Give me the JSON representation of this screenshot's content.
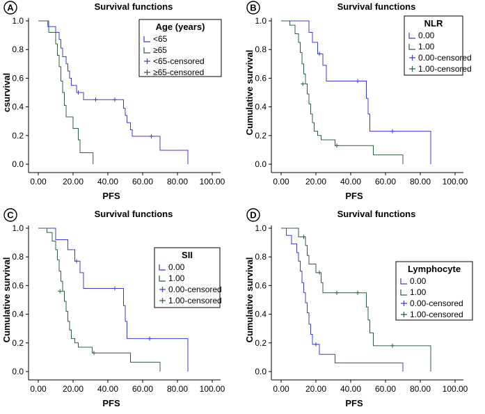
{
  "colors": {
    "blue": "#3a3ad6",
    "green": "#2d5e3c"
  },
  "chart_data": [
    {
      "type": "line",
      "panel_label": "A",
      "title": "Survival functions",
      "xlabel": "PFS",
      "ylabel": "csurvival",
      "xlim": [
        0,
        100
      ],
      "ylim": [
        0,
        1.0
      ],
      "xticks": [
        "0.00",
        "20.00",
        "40.00",
        "60.00",
        "80.00",
        "100.00"
      ],
      "yticks": [
        "0.0",
        "0.2",
        "0.4",
        "0.6",
        "0.8",
        "1.0"
      ],
      "legend_title": "Age (years)",
      "legend_entries": [
        "<65",
        "≥65",
        "<65-censored",
        "≥65-censored"
      ],
      "series": [
        {
          "name": "<65",
          "color": "blue",
          "steps": [
            [
              0,
              1.0
            ],
            [
              5.5,
              0.96
            ],
            [
              10,
              0.92
            ],
            [
              12,
              0.87
            ],
            [
              13,
              0.81
            ],
            [
              14,
              0.75
            ],
            [
              16,
              0.7
            ],
            [
              17,
              0.65
            ],
            [
              18,
              0.6
            ],
            [
              19,
              0.55
            ],
            [
              22,
              0.5
            ],
            [
              26,
              0.45
            ],
            [
              49,
              0.39
            ],
            [
              50,
              0.34
            ],
            [
              51,
              0.29
            ],
            [
              53,
              0.24
            ],
            [
              54,
              0.195
            ],
            [
              70,
              0.097
            ],
            [
              86,
              0.0
            ]
          ],
          "end_x": 86,
          "censored": [
            [
              23,
              0.5
            ],
            [
              33,
              0.45
            ],
            [
              44,
              0.45
            ],
            [
              65,
              0.195
            ]
          ]
        },
        {
          "name": "≥65",
          "color": "green",
          "steps": [
            [
              0,
              1.0
            ],
            [
              6,
              0.92
            ],
            [
              10,
              0.84
            ],
            [
              11,
              0.76
            ],
            [
              12,
              0.68
            ],
            [
              13,
              0.58
            ],
            [
              14,
              0.5
            ],
            [
              15,
              0.41
            ],
            [
              16,
              0.33
            ],
            [
              20,
              0.25
            ],
            [
              23,
              0.17
            ],
            [
              24,
              0.08
            ],
            [
              31.5,
              0.0
            ]
          ],
          "end_x": 31.5,
          "censored": []
        }
      ]
    },
    {
      "type": "line",
      "panel_label": "B",
      "title": "Survival functions",
      "xlabel": "PFS",
      "ylabel": "Cumulative survival",
      "xlim": [
        0,
        100
      ],
      "ylim": [
        0,
        1.0
      ],
      "xticks": [
        "0.00",
        "20.00",
        "40.00",
        "60.00",
        "80.00",
        "100.00"
      ],
      "yticks": [
        "0.0",
        "0.2",
        "0.4",
        "0.6",
        "0.8",
        "1.0"
      ],
      "legend_title": "NLR",
      "legend_entries": [
        "0.00",
        "1.00",
        "0.00-censored",
        "1.00-censored"
      ],
      "series": [
        {
          "name": "0.00",
          "color": "blue",
          "steps": [
            [
              0,
              1.0
            ],
            [
              16,
              0.92
            ],
            [
              18,
              0.85
            ],
            [
              21,
              0.77
            ],
            [
              24,
              0.69
            ],
            [
              26,
              0.58
            ],
            [
              49,
              0.46
            ],
            [
              50,
              0.35
            ],
            [
              51,
              0.23
            ],
            [
              86,
              0.0
            ]
          ],
          "end_x": 86,
          "censored": [
            [
              22,
              0.77
            ],
            [
              44,
              0.58
            ],
            [
              64,
              0.23
            ]
          ]
        },
        {
          "name": "1.00",
          "color": "green",
          "steps": [
            [
              0,
              1.0
            ],
            [
              5,
              0.97
            ],
            [
              8,
              0.91
            ],
            [
              10,
              0.85
            ],
            [
              11,
              0.78
            ],
            [
              12,
              0.7
            ],
            [
              13,
              0.63
            ],
            [
              14,
              0.56
            ],
            [
              15,
              0.49
            ],
            [
              16,
              0.42
            ],
            [
              17,
              0.35
            ],
            [
              18,
              0.29
            ],
            [
              19,
              0.23
            ],
            [
              21,
              0.2
            ],
            [
              23,
              0.17
            ],
            [
              31,
              0.13
            ],
            [
              53,
              0.065
            ],
            [
              70,
              0.0
            ]
          ],
          "end_x": 70,
          "censored": [
            [
              12.5,
              0.56
            ],
            [
              32,
              0.13
            ]
          ]
        }
      ]
    },
    {
      "type": "line",
      "panel_label": "C",
      "title": "Survival functions",
      "xlabel": "PFS",
      "ylabel": "Cumulative survival",
      "xlim": [
        0,
        100
      ],
      "ylim": [
        0,
        1.0
      ],
      "xticks": [
        "0.00",
        "20.00",
        "40.00",
        "60.00",
        "80.00",
        "100.00"
      ],
      "yticks": [
        "0.0",
        "0.2",
        "0.4",
        "0.6",
        "0.8",
        "1.0"
      ],
      "legend_title": "SII",
      "legend_entries": [
        "0.00",
        "1.00",
        "0.00-censored",
        "1.00-censored"
      ],
      "series": [
        {
          "name": "0.00",
          "color": "blue",
          "steps": [
            [
              0,
              1.0
            ],
            [
              10,
              0.92
            ],
            [
              17,
              0.85
            ],
            [
              21,
              0.77
            ],
            [
              24,
              0.69
            ],
            [
              26,
              0.58
            ],
            [
              49,
              0.46
            ],
            [
              50,
              0.35
            ],
            [
              51,
              0.23
            ],
            [
              86,
              0.0
            ]
          ],
          "end_x": 86,
          "censored": [
            [
              22,
              0.77
            ],
            [
              44,
              0.58
            ],
            [
              64,
              0.23
            ]
          ]
        },
        {
          "name": "1.00",
          "color": "green",
          "steps": [
            [
              0,
              1.0
            ],
            [
              5,
              0.97
            ],
            [
              8,
              0.91
            ],
            [
              10,
              0.85
            ],
            [
              11,
              0.78
            ],
            [
              12,
              0.7
            ],
            [
              13,
              0.63
            ],
            [
              14,
              0.56
            ],
            [
              15,
              0.49
            ],
            [
              16,
              0.42
            ],
            [
              17,
              0.35
            ],
            [
              18,
              0.29
            ],
            [
              19,
              0.23
            ],
            [
              21,
              0.2
            ],
            [
              23,
              0.17
            ],
            [
              31,
              0.13
            ],
            [
              53,
              0.065
            ],
            [
              70,
              0.0
            ]
          ],
          "end_x": 70,
          "censored": [
            [
              12.5,
              0.56
            ],
            [
              32,
              0.13
            ]
          ]
        }
      ]
    },
    {
      "type": "line",
      "panel_label": "D",
      "title": "Survival functions",
      "xlabel": "PFS",
      "ylabel": "Cumulative survival",
      "xlim": [
        0,
        100
      ],
      "ylim": [
        0,
        1.0
      ],
      "xticks": [
        "0.00",
        "20.00",
        "40.00",
        "60.00",
        "80.00",
        "100.00"
      ],
      "yticks": [
        "0.0",
        "0.2",
        "0.4",
        "0.6",
        "0.8",
        "1.0"
      ],
      "legend_title": "Lymphocyte",
      "legend_entries": [
        "0.00",
        "1.00",
        "0.00-censored",
        "1.00-censored"
      ],
      "series": [
        {
          "name": "0.00",
          "color": "blue",
          "steps": [
            [
              0,
              1.0
            ],
            [
              3,
              0.95
            ],
            [
              6,
              0.89
            ],
            [
              9,
              0.83
            ],
            [
              10,
              0.77
            ],
            [
              11,
              0.7
            ],
            [
              12,
              0.62
            ],
            [
              13,
              0.55
            ],
            [
              14,
              0.48
            ],
            [
              15,
              0.41
            ],
            [
              16,
              0.33
            ],
            [
              17,
              0.26
            ],
            [
              18,
              0.19
            ],
            [
              22,
              0.12
            ],
            [
              31,
              0.06
            ],
            [
              70,
              0.0
            ]
          ],
          "end_x": 70,
          "censored": [
            [
              20,
              0.19
            ]
          ]
        },
        {
          "name": "1.00",
          "color": "green",
          "steps": [
            [
              0,
              1.0
            ],
            [
              10,
              0.94
            ],
            [
              14,
              0.88
            ],
            [
              15,
              0.81
            ],
            [
              16,
              0.75
            ],
            [
              20,
              0.69
            ],
            [
              23,
              0.62
            ],
            [
              24,
              0.55
            ],
            [
              49,
              0.45
            ],
            [
              50,
              0.36
            ],
            [
              51,
              0.27
            ],
            [
              53,
              0.18
            ],
            [
              86,
              0.0
            ]
          ],
          "end_x": 86,
          "censored": [
            [
              13,
              0.94
            ],
            [
              22,
              0.69
            ],
            [
              32,
              0.55
            ],
            [
              44,
              0.55
            ],
            [
              64,
              0.18
            ]
          ]
        }
      ]
    }
  ]
}
